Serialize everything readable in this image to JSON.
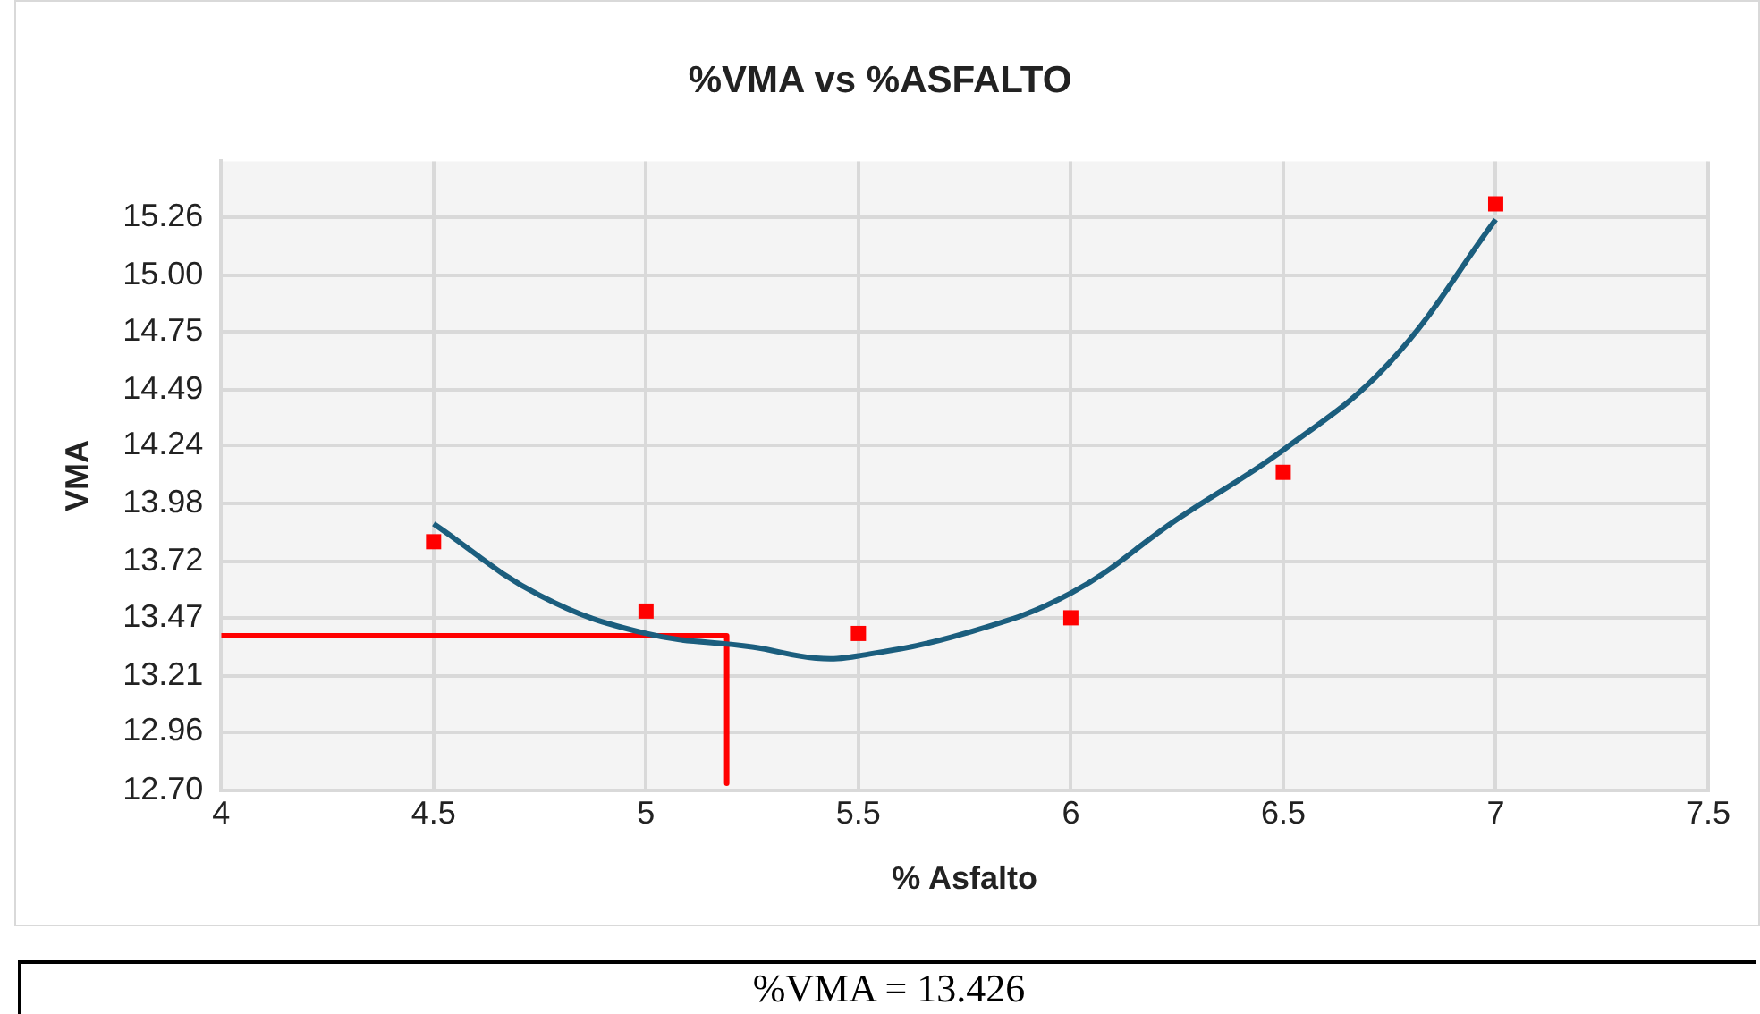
{
  "chart_data": {
    "type": "scatter",
    "title": "%VMA vs %ASFALTO",
    "xlabel": "% Asfalto",
    "ylabel": "VMA",
    "xlim": [
      4,
      7.5
    ],
    "xticks": [
      4,
      4.5,
      5,
      5.5,
      6,
      6.5,
      7,
      7.5
    ],
    "ylim": [
      12.7,
      15.51
    ],
    "yticks": [
      {
        "value": 12.7,
        "label": "12.70"
      },
      12.96,
      13.21,
      13.47,
      13.72,
      13.98,
      14.24,
      14.49,
      14.75,
      {
        "value": 15,
        "label": "15.00"
      },
      15.26
    ],
    "grid": true,
    "legend": false,
    "series": [
      {
        "type": "scatter",
        "color": "#ff0000",
        "marker": "square",
        "x": [
          4.5,
          5,
          5.5,
          6,
          6.5,
          7
        ],
        "values": [
          13.81,
          13.5,
          13.4,
          13.47,
          14.12,
          15.32
        ]
      },
      {
        "type": "line",
        "color": "#1b5e7e",
        "marker": "none",
        "x": [
          4.5,
          4.75,
          5,
          5.25,
          5.4,
          5.5,
          5.75,
          6,
          6.25,
          6.5,
          6.75,
          7
        ],
        "values": [
          13.89,
          13.57,
          13.4,
          13.34,
          13.29,
          13.3,
          13.4,
          13.58,
          13.91,
          14.22,
          14.61,
          15.25
        ]
      },
      {
        "type": "line",
        "color": "#ff0000",
        "marker": "none",
        "x": [
          4,
          5.19,
          5.19
        ],
        "values": [
          13.39,
          13.39,
          12.73
        ]
      }
    ],
    "annotations": [
      "%VMA = 13.426"
    ]
  }
}
